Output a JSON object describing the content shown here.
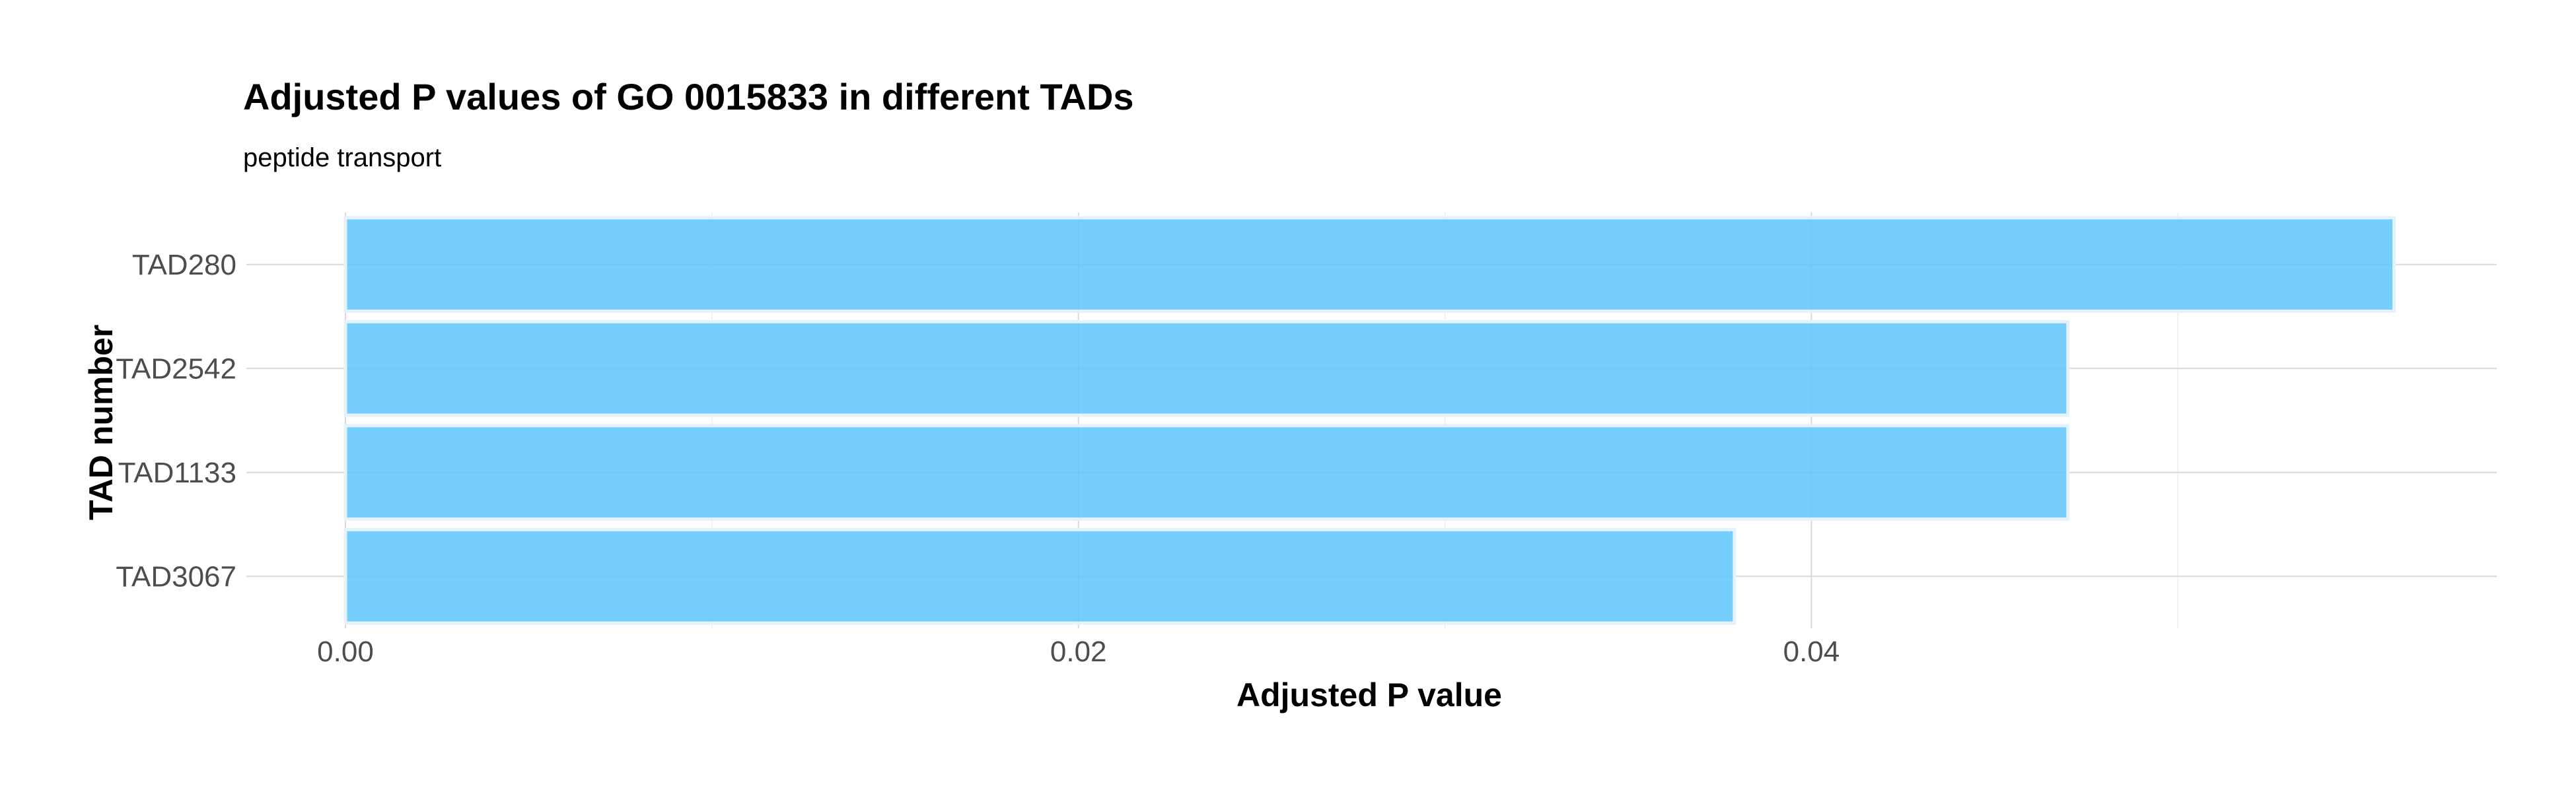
{
  "chart_data": {
    "type": "bar",
    "orientation": "horizontal",
    "title": "Adjusted P values of GO 0015833 in different TADs",
    "subtitle": "peptide transport",
    "xlabel": "Adjusted P value",
    "ylabel": "TAD number",
    "categories": [
      "TAD280",
      "TAD2542",
      "TAD1133",
      "TAD3067"
    ],
    "values": [
      0.0559,
      0.047,
      0.047,
      0.0379
    ],
    "xlim": [
      0,
      0.0587
    ],
    "x_ticks": [
      0.0,
      0.02,
      0.04
    ],
    "x_tick_labels": [
      "0.00",
      "0.02",
      "0.04"
    ],
    "x_minor_ticks": [
      0.01,
      0.03,
      0.05
    ],
    "bar_color": "#5ec6fb",
    "bar_outline_color": "#e6f2fb",
    "grid": true,
    "legend": "none"
  }
}
